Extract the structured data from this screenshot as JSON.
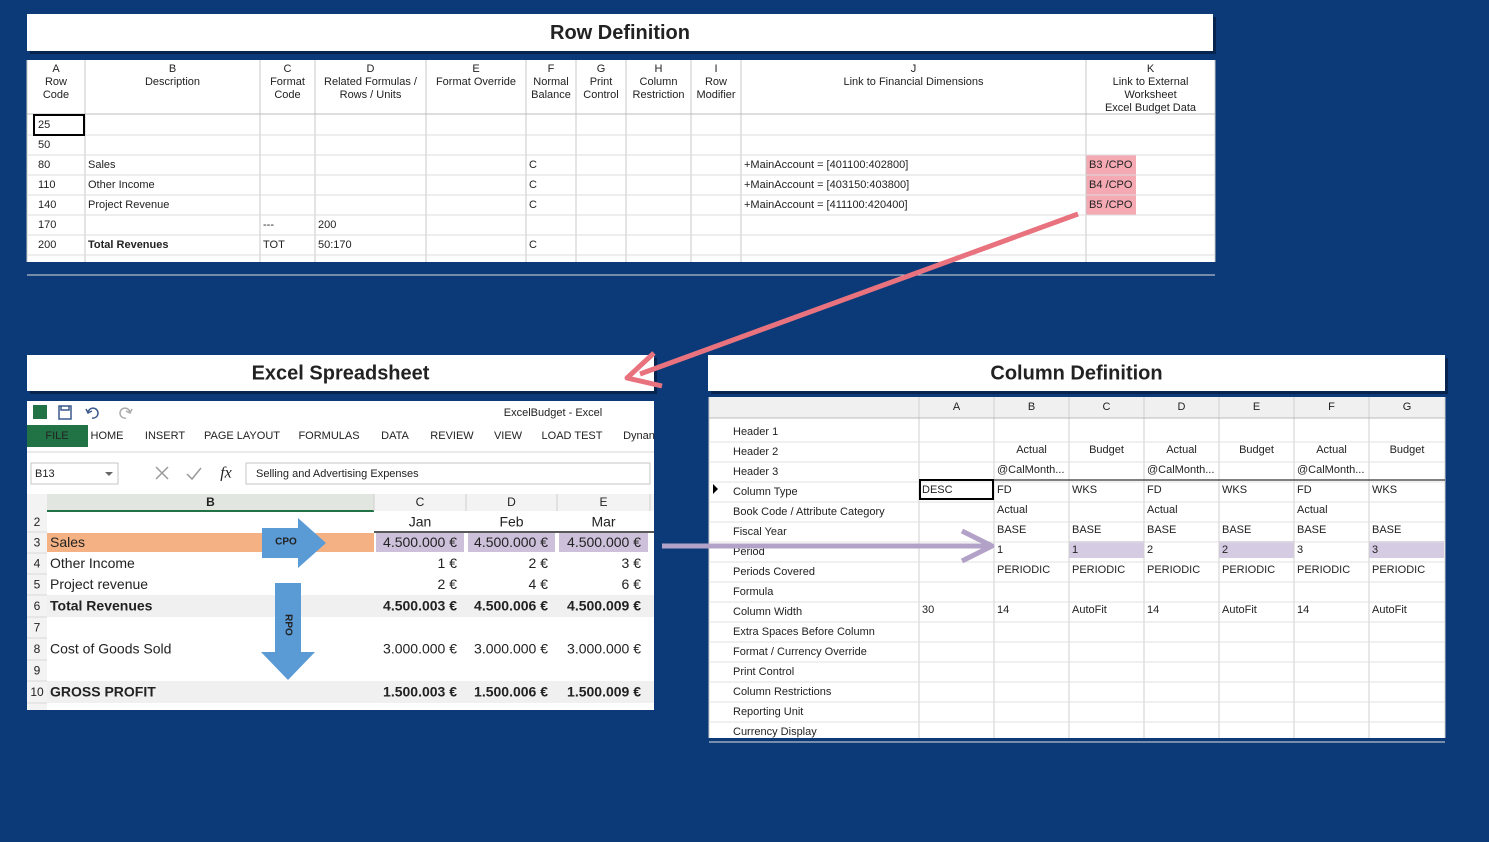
{
  "row_definition": {
    "title": "Row Definition",
    "columns": [
      {
        "letter": "A",
        "label": [
          "Row",
          "Code"
        ]
      },
      {
        "letter": "B",
        "label": [
          "Description"
        ]
      },
      {
        "letter": "C",
        "label": [
          "Format",
          "Code"
        ]
      },
      {
        "letter": "D",
        "label": [
          "Related Formulas /",
          "Rows / Units"
        ]
      },
      {
        "letter": "E",
        "label": [
          "Format Override"
        ]
      },
      {
        "letter": "F",
        "label": [
          "Normal",
          "Balance"
        ]
      },
      {
        "letter": "G",
        "label": [
          "Print",
          "Control"
        ]
      },
      {
        "letter": "H",
        "label": [
          "Column",
          "Restriction"
        ]
      },
      {
        "letter": "I",
        "label": [
          "Row",
          "Modifier"
        ]
      },
      {
        "letter": "J",
        "label": [
          "Link to Financial Dimensions"
        ]
      },
      {
        "letter": "K",
        "label": [
          "Link to External",
          "Worksheet",
          "Excel Budget Data"
        ]
      }
    ],
    "highlight_column": "K",
    "highlight_color": "#f4a9b3",
    "rows": [
      {
        "cells": {
          "A": "25"
        }
      },
      {
        "cells": {
          "A": "50"
        }
      },
      {
        "cells": {
          "A": "80",
          "B": "Sales",
          "F": "C",
          "J": "+MainAccount = [401100:402800]",
          "K": "B3 /CPO"
        }
      },
      {
        "cells": {
          "A": "110",
          "B": "Other Income",
          "F": "C",
          "J": "+MainAccount = [403150:403800]",
          "K": "B4 /CPO"
        }
      },
      {
        "cells": {
          "A": "140",
          "B": "Project Revenue",
          "F": "C",
          "J": "+MainAccount = [411100:420400]",
          "K": "B5 /CPO"
        }
      },
      {
        "cells": {
          "A": "170",
          "C": "---",
          "D": "200"
        }
      },
      {
        "cells": {
          "A": "200",
          "B": "Total Revenues",
          "C": "TOT",
          "D": "50:170",
          "F": "C"
        },
        "bold": true
      }
    ]
  },
  "excel": {
    "title": "Excel Spreadsheet",
    "window_title": "ExcelBudget - Excel",
    "tabs": [
      "FILE",
      "HOME",
      "INSERT",
      "PAGE LAYOUT",
      "FORMULAS",
      "DATA",
      "REVIEW",
      "VIEW",
      "LOAD TEST",
      "Dynan"
    ],
    "name_box": "B13",
    "function_icon": "fx",
    "formula": "Selling and Advertising Expenses",
    "columns": [
      "B",
      "C",
      "D",
      "E"
    ],
    "rows": [
      {
        "number": 2,
        "cells": {
          "C": "Jan",
          "D": "Feb",
          "E": "Mar"
        },
        "style": "months"
      },
      {
        "number": 3,
        "label": "Sales",
        "cells": {
          "C": "4.500.000 €",
          "D": "4.500.000 €",
          "E": "4.500.000 €"
        },
        "style": "highlight"
      },
      {
        "number": 4,
        "label": "Other Income",
        "cells": {
          "C": "1 €",
          "D": "2 €",
          "E": "3 €"
        }
      },
      {
        "number": 5,
        "label": "Project revenue",
        "cells": {
          "C": "2 €",
          "D": "4 €",
          "E": "6 €"
        }
      },
      {
        "number": 6,
        "label": "Total Revenues",
        "cells": {
          "C": "4.500.003 €",
          "D": "4.500.006 €",
          "E": "4.500.009 €"
        },
        "style": "total"
      },
      {
        "number": 7
      },
      {
        "number": 8,
        "label": "Cost of Goods Sold",
        "cells": {
          "C": "3.000.000 €",
          "D": "3.000.000 €",
          "E": "3.000.000 €"
        }
      },
      {
        "number": 9
      },
      {
        "number": 10,
        "label": "GROSS PROFIT",
        "cells": {
          "C": "1.500.003 €",
          "D": "1.500.006 €",
          "E": "1.500.009 €"
        },
        "style": "total"
      }
    ],
    "arrows": {
      "right": "CPO",
      "down": "RPO"
    }
  },
  "column_definition": {
    "title": "Column Definition",
    "columns": [
      "A",
      "B",
      "C",
      "D",
      "E",
      "F",
      "G"
    ],
    "accent_columns": [
      "C",
      "E",
      "G"
    ],
    "accent_color": "#2a2ad0",
    "highlight_color": "#d5cbe3",
    "rows": [
      {
        "label": "Header 1"
      },
      {
        "label": "Header 2",
        "cells": {
          "B": "Actual",
          "C": "Budget",
          "D": "Actual",
          "E": "Budget",
          "F": "Actual",
          "G": "Budget"
        },
        "centered": true,
        "accent": true
      },
      {
        "label": "Header 3",
        "cells": {
          "B": "@CalMonth...",
          "D": "@CalMonth...",
          "F": "@CalMonth..."
        }
      },
      {
        "label": "Column Type",
        "cells": {
          "A": "DESC",
          "B": "FD",
          "C": "WKS",
          "D": "FD",
          "E": "WKS",
          "F": "FD",
          "G": "WKS"
        },
        "accent": true
      },
      {
        "label": "Book Code / Attribute Category",
        "cells": {
          "B": "Actual",
          "D": "Actual",
          "F": "Actual"
        }
      },
      {
        "label": "Fiscal Year",
        "cells": {
          "B": "BASE",
          "C": "BASE",
          "D": "BASE",
          "E": "BASE",
          "F": "BASE",
          "G": "BASE"
        }
      },
      {
        "label": "Period",
        "cells": {
          "B": "1",
          "C": "1",
          "D": "2",
          "E": "2",
          "F": "3",
          "G": "3"
        },
        "highlight": true
      },
      {
        "label": "Periods Covered",
        "cells": {
          "B": "PERIODIC",
          "C": "PERIODIC",
          "D": "PERIODIC",
          "E": "PERIODIC",
          "F": "PERIODIC",
          "G": "PERIODIC"
        }
      },
      {
        "label": "Formula"
      },
      {
        "label": "Column Width",
        "cells": {
          "A": "30",
          "B": "14",
          "C": "AutoFit",
          "D": "14",
          "E": "AutoFit",
          "F": "14",
          "G": "AutoFit"
        }
      },
      {
        "label": "Extra Spaces Before Column"
      },
      {
        "label": "Format / Currency Override"
      },
      {
        "label": "Print Control"
      },
      {
        "label": "Column Restrictions"
      },
      {
        "label": "Reporting Unit"
      },
      {
        "label": "Currency Display"
      }
    ]
  }
}
